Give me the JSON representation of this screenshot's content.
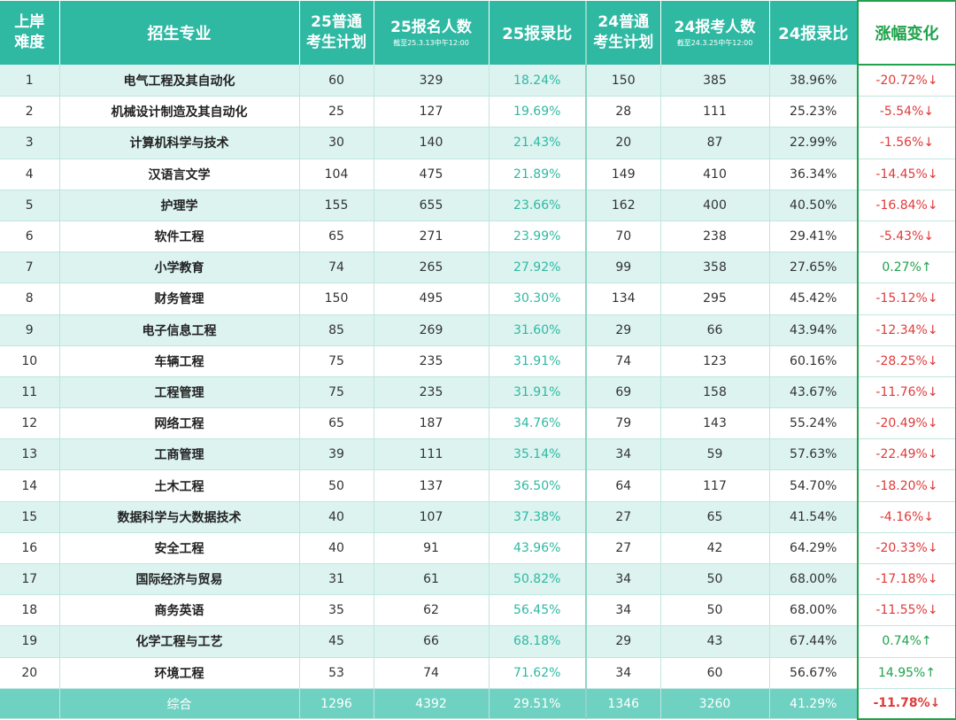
{
  "headers": {
    "difficulty": [
      "上岸",
      "难度"
    ],
    "major": "招生专业",
    "plan25": [
      "25普通",
      "考生计划"
    ],
    "apply25": "25报名人数",
    "apply25_note": "截至25.3.13中午12:00",
    "ratio25": "25报录比",
    "plan24": [
      "24普通",
      "考生计划"
    ],
    "apply24": "24报考人数",
    "apply24_note": "截至24.3.25中午12:00",
    "ratio24": "24报录比",
    "change": "涨幅变化"
  },
  "rows": [
    {
      "rank": "1",
      "major": "电气工程及其自动化",
      "plan25": "60",
      "apply25": "329",
      "ratio25": "18.24%",
      "plan24": "150",
      "apply24": "385",
      "ratio24": "38.96%",
      "change": "-20.72%↓",
      "dir": "down"
    },
    {
      "rank": "2",
      "major": "机械设计制造及其自动化",
      "plan25": "25",
      "apply25": "127",
      "ratio25": "19.69%",
      "plan24": "28",
      "apply24": "111",
      "ratio24": "25.23%",
      "change": "-5.54%↓",
      "dir": "down"
    },
    {
      "rank": "3",
      "major": "计算机科学与技术",
      "plan25": "30",
      "apply25": "140",
      "ratio25": "21.43%",
      "plan24": "20",
      "apply24": "87",
      "ratio24": "22.99%",
      "change": "-1.56%↓",
      "dir": "down"
    },
    {
      "rank": "4",
      "major": "汉语言文学",
      "plan25": "104",
      "apply25": "475",
      "ratio25": "21.89%",
      "plan24": "149",
      "apply24": "410",
      "ratio24": "36.34%",
      "change": "-14.45%↓",
      "dir": "down"
    },
    {
      "rank": "5",
      "major": "护理学",
      "plan25": "155",
      "apply25": "655",
      "ratio25": "23.66%",
      "plan24": "162",
      "apply24": "400",
      "ratio24": "40.50%",
      "change": "-16.84%↓",
      "dir": "down"
    },
    {
      "rank": "6",
      "major": "软件工程",
      "plan25": "65",
      "apply25": "271",
      "ratio25": "23.99%",
      "plan24": "70",
      "apply24": "238",
      "ratio24": "29.41%",
      "change": "-5.43%↓",
      "dir": "down"
    },
    {
      "rank": "7",
      "major": "小学教育",
      "plan25": "74",
      "apply25": "265",
      "ratio25": "27.92%",
      "plan24": "99",
      "apply24": "358",
      "ratio24": "27.65%",
      "change": "0.27%↑",
      "dir": "up"
    },
    {
      "rank": "8",
      "major": "财务管理",
      "plan25": "150",
      "apply25": "495",
      "ratio25": "30.30%",
      "plan24": "134",
      "apply24": "295",
      "ratio24": "45.42%",
      "change": "-15.12%↓",
      "dir": "down"
    },
    {
      "rank": "9",
      "major": "电子信息工程",
      "plan25": "85",
      "apply25": "269",
      "ratio25": "31.60%",
      "plan24": "29",
      "apply24": "66",
      "ratio24": "43.94%",
      "change": "-12.34%↓",
      "dir": "down"
    },
    {
      "rank": "10",
      "major": "车辆工程",
      "plan25": "75",
      "apply25": "235",
      "ratio25": "31.91%",
      "plan24": "74",
      "apply24": "123",
      "ratio24": "60.16%",
      "change": "-28.25%↓",
      "dir": "down"
    },
    {
      "rank": "11",
      "major": "工程管理",
      "plan25": "75",
      "apply25": "235",
      "ratio25": "31.91%",
      "plan24": "69",
      "apply24": "158",
      "ratio24": "43.67%",
      "change": "-11.76%↓",
      "dir": "down"
    },
    {
      "rank": "12",
      "major": "网络工程",
      "plan25": "65",
      "apply25": "187",
      "ratio25": "34.76%",
      "plan24": "79",
      "apply24": "143",
      "ratio24": "55.24%",
      "change": "-20.49%↓",
      "dir": "down"
    },
    {
      "rank": "13",
      "major": "工商管理",
      "plan25": "39",
      "apply25": "111",
      "ratio25": "35.14%",
      "plan24": "34",
      "apply24": "59",
      "ratio24": "57.63%",
      "change": "-22.49%↓",
      "dir": "down"
    },
    {
      "rank": "14",
      "major": "土木工程",
      "plan25": "50",
      "apply25": "137",
      "ratio25": "36.50%",
      "plan24": "64",
      "apply24": "117",
      "ratio24": "54.70%",
      "change": "-18.20%↓",
      "dir": "down"
    },
    {
      "rank": "15",
      "major": "数据科学与大数据技术",
      "plan25": "40",
      "apply25": "107",
      "ratio25": "37.38%",
      "plan24": "27",
      "apply24": "65",
      "ratio24": "41.54%",
      "change": "-4.16%↓",
      "dir": "down"
    },
    {
      "rank": "16",
      "major": "安全工程",
      "plan25": "40",
      "apply25": "91",
      "ratio25": "43.96%",
      "plan24": "27",
      "apply24": "42",
      "ratio24": "64.29%",
      "change": "-20.33%↓",
      "dir": "down"
    },
    {
      "rank": "17",
      "major": "国际经济与贸易",
      "plan25": "31",
      "apply25": "61",
      "ratio25": "50.82%",
      "plan24": "34",
      "apply24": "50",
      "ratio24": "68.00%",
      "change": "-17.18%↓",
      "dir": "down"
    },
    {
      "rank": "18",
      "major": "商务英语",
      "plan25": "35",
      "apply25": "62",
      "ratio25": "56.45%",
      "plan24": "34",
      "apply24": "50",
      "ratio24": "68.00%",
      "change": "-11.55%↓",
      "dir": "down"
    },
    {
      "rank": "19",
      "major": "化学工程与工艺",
      "plan25": "45",
      "apply25": "66",
      "ratio25": "68.18%",
      "plan24": "29",
      "apply24": "43",
      "ratio24": "67.44%",
      "change": "0.74%↑",
      "dir": "up"
    },
    {
      "rank": "20",
      "major": "环境工程",
      "plan25": "53",
      "apply25": "74",
      "ratio25": "71.62%",
      "plan24": "34",
      "apply24": "60",
      "ratio24": "56.67%",
      "change": "14.95%↑",
      "dir": "up"
    }
  ],
  "total": {
    "rank": "",
    "major": "综合",
    "plan25": "1296",
    "apply25": "4392",
    "ratio25": "29.51%",
    "plan24": "1346",
    "apply24": "3260",
    "ratio24": "41.29%",
    "change": "-11.78%↓",
    "dir": "down"
  },
  "colors": {
    "header": "#2fb9a3",
    "alt_row": "#dcf3f0",
    "down": "#e03a3a",
    "up": "#1fa24b"
  }
}
